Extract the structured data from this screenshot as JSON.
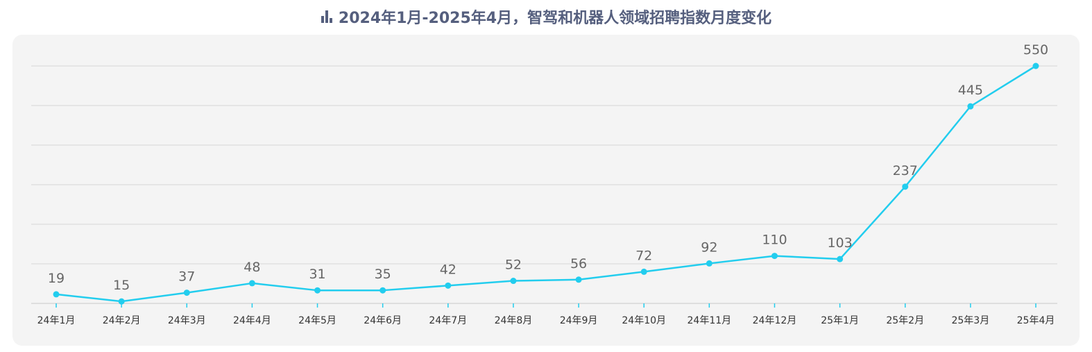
{
  "title": "2024年1月-2025年4月，智驾和机器人领域招聘指数月度变化",
  "icon": "bar-chart-icon",
  "colors": {
    "line": "#22cdee",
    "title": "#555f7e",
    "panel": "#f4f4f4",
    "grid": "#d6d6d6"
  },
  "chart_data": {
    "type": "line",
    "categories": [
      "24年1月",
      "24年2月",
      "24年3月",
      "24年4月",
      "24年5月",
      "24年6月",
      "24年7月",
      "24年8月",
      "24年9月",
      "24年10月",
      "24年11月",
      "24年12月",
      "25年1月",
      "25年2月",
      "25年3月",
      "25年4月"
    ],
    "series": [
      {
        "values": [
          19,
          15,
          37,
          48,
          31,
          35,
          42,
          52,
          56,
          72,
          92,
          110,
          103,
          237,
          445,
          550
        ]
      }
    ],
    "point_positions": [
      23,
      5,
      27,
      51,
      33,
      33,
      45,
      57,
      60,
      80,
      101,
      120,
      112,
      295,
      498,
      600
    ],
    "ylim": [
      0,
      600
    ],
    "grid": true,
    "legend": "none"
  }
}
